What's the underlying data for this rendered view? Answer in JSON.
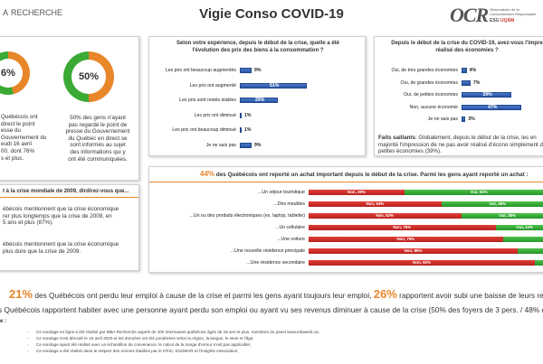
{
  "header": {
    "logo_text": "A",
    "logo_sub": "RECHERCHE",
    "title": "Vigie Conso COVID-19",
    "ocr_logo": "OCR",
    "ocr_sub": "Observatoire de la Consommation Responsable",
    "ocr_esg": "ESG",
    "ocr_uqam": "UQÀM"
  },
  "donuts": {
    "left_value": "6%",
    "right_value": "50%",
    "left_text": [
      "Québécois ont",
      "direct le point",
      "esse du",
      "Gouvernement du",
      "eudi 16 avril",
      "00, dont 76%",
      "s et plus."
    ],
    "right_text": [
      "50% des gens n'ayant",
      "pas regardé le point de",
      "presse du Gouvernement",
      "du Québec en direct se",
      "sont informés au sujet",
      "des informations qui y",
      "ont été communiquées."
    ]
  },
  "recession": {
    "title": "t à la crise mondiale de 2009, dirdirez-vous que...",
    "p1": [
      "ébécois mentionnent que la crise économique",
      "rer plus longtemps que la crise de 2009, en",
      "5 ans et plus (87%)."
    ],
    "p2": [
      "ébécois mentionnent que la crise économique",
      "plus dure que la crise de 2009."
    ]
  },
  "prices": {
    "question": [
      "Selon votre expérience, depuis le début de la crise, quelle a été",
      "l'évolution des prix des biens à la consommation ?"
    ],
    "items": [
      {
        "label": "Les prix ont beaucoup augmentés",
        "value": 9,
        "text": "9%"
      },
      {
        "label": "Les prix ont augmenté",
        "value": 51,
        "text": "51%"
      },
      {
        "label": "Les prix sont restés stables",
        "value": 29,
        "text": "29%"
      },
      {
        "label": "Les prix ont diminué",
        "value": 1,
        "text": "1%"
      },
      {
        "label": "Les prix ont beaucoup diminué",
        "value": 1,
        "text": "1%"
      },
      {
        "label": "Je ne sais pas",
        "value": 9,
        "text": "9%"
      }
    ]
  },
  "savings": {
    "question": [
      "Depuis le début de la crise du COVID-19, avez-vous l'impre",
      "réalisé des économies ?"
    ],
    "items": [
      {
        "label": "Oui, de très grandes économies",
        "value": 4,
        "text": "4%"
      },
      {
        "label": "Oui, de grandes économies",
        "value": 7,
        "text": "7%"
      },
      {
        "label": "Oui, de petites économies",
        "value": 39,
        "text": "39%"
      },
      {
        "label": "Non, aucune économie",
        "value": 47,
        "text": "47%"
      },
      {
        "label": "Je ne sais pas",
        "value": 3,
        "text": "3%"
      }
    ],
    "faits_label": "Faits saillants",
    "faits_text": [
      ": Globalement, depuis le début de la crise, les",
      "en majorité l'impression de ne pas avoir réalisé d'écono",
      "simplement de petites économies (39%)."
    ]
  },
  "purchase": {
    "pct": "44%",
    "title": " des Québécois ont reporté un achat important depuis le début de la crise. Parmi les gens ayant reporté un achat :",
    "items": [
      {
        "label": "...Un séjour touristique",
        "non": 39,
        "oui": 61,
        "non_text": "Non, 39%",
        "oui_text": "Oui, 61%"
      },
      {
        "label": "...Des meubles",
        "non": 54,
        "oui": 46,
        "non_text": "Non, 54%",
        "oui_text": "Oui, 46%"
      },
      {
        "label": "...Un ou des produits électroniques (ex. laptop, tablette)",
        "non": 62,
        "oui": 38,
        "non_text": "Non, 62%",
        "oui_text": "Oui, 38%"
      },
      {
        "label": "...Un cellulaire",
        "non": 76,
        "oui": 24,
        "non_text": "Non, 76%",
        "oui_text": "Oui, 24%"
      },
      {
        "label": "...Une voiture",
        "non": 79,
        "oui": 21,
        "non_text": "Non, 79%",
        "oui_text": ""
      },
      {
        "label": "...Une nouvelle résidence principale",
        "non": 85,
        "oui": 15,
        "non_text": "Non, 85%",
        "oui_text": ""
      },
      {
        "label": "...Une résidence secondaire",
        "non": 92,
        "oui": 8,
        "non_text": "Non, 92%",
        "oui_text": ""
      }
    ]
  },
  "footer": {
    "stat1_pct": "21%",
    "stat1_text": " des Québécois ont perdu leur emploi à cause de la crise et parmi les gens ayant toujours leur emploi,",
    "stat2_pct": "26%",
    "stat2_text": " rapportent avoir subi une baisse de leurs revenus.",
    "line2": "s Québécois rapportent habiter avec une personne ayant perdu son emploi ou ayant vu ses revenus diminuer à cause de la crise (50% des foyers de 3 pers.  / 48% des foyers d",
    "note_label": "e :",
    "notes": [
      "Ce sondage en ligne a été réalisé par MBA Recherche auprès de 400 internautes québécois âgés de 18 ans et plus, membres du panel www.mbaweb.ca;",
      "Ce sondage s'est déroulé le 16 avril 2020 et les données ont été pondérées selon la région, la langue, le sexe et l'âge;",
      "Ce sondage ayant été réalisé avec un échantillon de convenance, le calcul de la marge d'erreur n'est pas applicable;",
      "Ce sondage a été réalisé dans le respect des normes établies par le CRIC, ESOMAR et l'Insights Association;"
    ]
  },
  "colors": {
    "accent": "#e8862a",
    "bar_blue": "#2a55a6",
    "non_red": "#c0292b",
    "oui_green": "#2ba22f",
    "donut_green": "#3aaa35"
  }
}
